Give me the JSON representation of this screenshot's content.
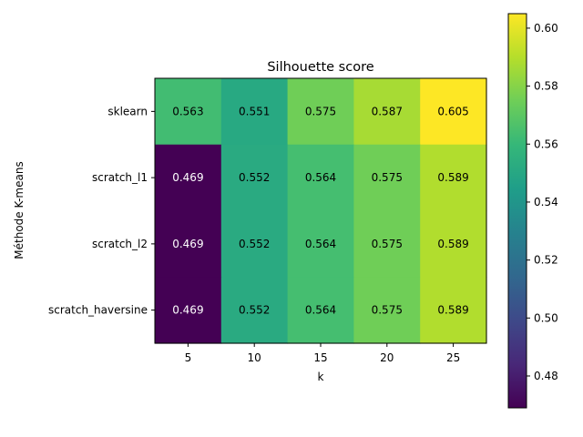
{
  "chart_data": {
    "type": "heatmap",
    "title": "Silhouette score",
    "xlabel": "k",
    "ylabel": "Méthode K-means",
    "x": [
      "5",
      "10",
      "15",
      "20",
      "25"
    ],
    "y": [
      "sklearn",
      "scratch_l1",
      "scratch_l2",
      "scratch_haversine"
    ],
    "values": [
      [
        0.563,
        0.551,
        0.575,
        0.587,
        0.605
      ],
      [
        0.469,
        0.552,
        0.564,
        0.575,
        0.589
      ],
      [
        0.469,
        0.552,
        0.564,
        0.575,
        0.589
      ],
      [
        0.469,
        0.552,
        0.564,
        0.575,
        0.589
      ]
    ],
    "labels": [
      [
        "0.563",
        "0.551",
        "0.575",
        "0.587",
        "0.605"
      ],
      [
        "0.469",
        "0.552",
        "0.564",
        "0.575",
        "0.589"
      ],
      [
        "0.469",
        "0.552",
        "0.564",
        "0.575",
        "0.589"
      ],
      [
        "0.469",
        "0.552",
        "0.564",
        "0.575",
        "0.589"
      ]
    ],
    "colormap": "viridis",
    "colorbar": {
      "range": [
        0.469,
        0.605
      ],
      "ticks": [
        "0.48",
        "0.50",
        "0.52",
        "0.54",
        "0.56",
        "0.58",
        "0.60"
      ],
      "tick_values": [
        0.48,
        0.5,
        0.52,
        0.54,
        0.56,
        0.58,
        0.6
      ]
    }
  }
}
